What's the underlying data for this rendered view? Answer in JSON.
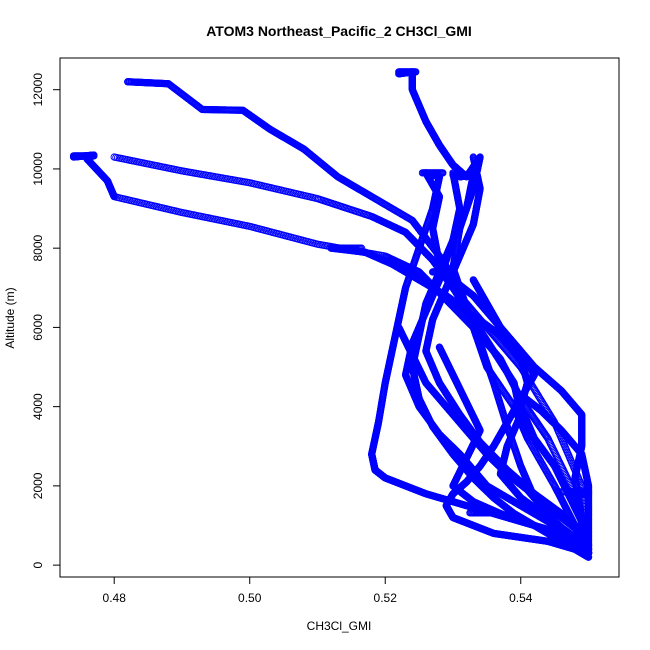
{
  "chart_data": {
    "type": "scatter",
    "title": "ATOM3 Northeast_Pacific_2 CH3Cl_GMI",
    "xlabel": "CH3Cl_GMI",
    "ylabel": "Altitude (m)",
    "xlim": [
      0.472,
      0.5545
    ],
    "ylim": [
      -300,
      12800
    ],
    "xticks": [
      0.48,
      0.5,
      0.52,
      0.54
    ],
    "xtick_labels": [
      "0.48",
      "0.50",
      "0.52",
      "0.54"
    ],
    "yticks": [
      0,
      2000,
      4000,
      6000,
      8000,
      10000,
      12000
    ],
    "ytick_labels": [
      "0",
      "2000",
      "4000",
      "6000",
      "8000",
      "10000",
      "12000"
    ],
    "grid": false,
    "marker": "open-circle",
    "color": "#0000ff",
    "series": [
      {
        "points_per_segment": 40,
        "x": [
          0.482,
          0.488,
          0.493,
          0.499,
          0.503,
          0.508,
          0.513,
          0.518,
          0.524,
          0.528,
          0.531,
          0.533,
          0.535,
          0.539,
          0.541,
          0.545,
          0.548,
          0.55
        ],
        "y": [
          12200,
          12150,
          11500,
          11480,
          11000,
          10500,
          9800,
          9300,
          8700,
          7800,
          7000,
          6000,
          5000,
          4000,
          3200,
          2000,
          1000,
          200
        ]
      },
      {
        "points_per_segment": 40,
        "x": [
          0.474,
          0.477,
          0.476,
          0.479,
          0.48,
          0.49,
          0.5,
          0.51,
          0.52,
          0.525,
          0.529,
          0.533,
          0.537,
          0.54,
          0.544,
          0.548,
          0.55
        ],
        "y": [
          10300,
          10350,
          10250,
          9700,
          9300,
          8900,
          8550,
          8100,
          7800,
          7400,
          6700,
          6000,
          5200,
          4200,
          3200,
          1800,
          300
        ]
      },
      {
        "points_per_segment": 40,
        "x": [
          0.48,
          0.49,
          0.5,
          0.51,
          0.518,
          0.523,
          0.527,
          0.53,
          0.535,
          0.54,
          0.545,
          0.549,
          0.55
        ],
        "y": [
          10300,
          9950,
          9650,
          9250,
          8800,
          8400,
          7700,
          7000,
          6000,
          5000,
          3600,
          2000,
          500
        ]
      },
      {
        "points_per_segment": 40,
        "x": [
          0.522,
          0.524,
          0.524,
          0.526,
          0.528,
          0.53,
          0.532,
          0.534,
          0.533,
          0.531,
          0.53,
          0.532,
          0.534,
          0.536,
          0.538,
          0.54,
          0.542,
          0.546,
          0.549,
          0.55
        ],
        "y": [
          12400,
          12450,
          12000,
          11200,
          10600,
          10100,
          9800,
          10300,
          9500,
          8500,
          7500,
          6500,
          5600,
          4600,
          3500,
          2500,
          1700,
          1200,
          800,
          300
        ]
      },
      {
        "points_per_segment": 40,
        "x": [
          0.526,
          0.528,
          0.527,
          0.525,
          0.523,
          0.522,
          0.521,
          0.52,
          0.519,
          0.518,
          0.5185,
          0.52,
          0.523,
          0.526,
          0.53,
          0.534,
          0.538,
          0.542,
          0.546,
          0.55
        ],
        "y": [
          9900,
          9800,
          9000,
          8000,
          7000,
          6200,
          5400,
          4600,
          3600,
          2800,
          2400,
          2200,
          2000,
          1800,
          1600,
          1400,
          1200,
          1000,
          800,
          500
        ]
      },
      {
        "points_per_segment": 40,
        "x": [
          0.531,
          0.533,
          0.532,
          0.53,
          0.528,
          0.526,
          0.524,
          0.523,
          0.525,
          0.528,
          0.531,
          0.533,
          0.535,
          0.539,
          0.543,
          0.547,
          0.55
        ],
        "y": [
          9800,
          9850,
          9000,
          8200,
          7200,
          6400,
          5600,
          4800,
          4000,
          3300,
          2800,
          2400,
          2000,
          1600,
          1200,
          800,
          400
        ]
      },
      {
        "points_per_segment": 40,
        "x": [
          0.526,
          0.528,
          0.527,
          0.528,
          0.53,
          0.533,
          0.536,
          0.539,
          0.54,
          0.538,
          0.537,
          0.54,
          0.544,
          0.548,
          0.55
        ],
        "y": [
          9900,
          9300,
          8500,
          7600,
          7000,
          6200,
          5400,
          4600,
          3800,
          3000,
          2300,
          1700,
          1200,
          700,
          300
        ]
      },
      {
        "points_per_segment": 40,
        "x": [
          0.53,
          0.531,
          0.53,
          0.528,
          0.526,
          0.525,
          0.524,
          0.525,
          0.527,
          0.53,
          0.533,
          0.536,
          0.539,
          0.542,
          0.545,
          0.548,
          0.55
        ],
        "y": [
          9900,
          9000,
          8200,
          7400,
          6600,
          5800,
          5000,
          4200,
          3500,
          2800,
          2200,
          1700,
          1300,
          1000,
          700,
          500,
          300
        ]
      },
      {
        "points_per_segment": 40,
        "x": [
          0.533,
          0.534,
          0.533,
          0.531,
          0.529,
          0.527,
          0.526,
          0.528,
          0.531,
          0.534,
          0.538,
          0.542,
          0.546,
          0.549,
          0.55
        ],
        "y": [
          10300,
          9500,
          8600,
          7800,
          7000,
          6200,
          5400,
          4600,
          3800,
          3100,
          2400,
          1800,
          1300,
          800,
          400
        ]
      },
      {
        "points_per_segment": 40,
        "x": [
          0.512,
          0.517,
          0.521,
          0.525,
          0.529,
          0.533,
          0.537,
          0.54,
          0.541,
          0.54,
          0.542,
          0.545,
          0.547,
          0.549,
          0.55
        ],
        "y": [
          8000,
          7900,
          7600,
          7200,
          6800,
          6300,
          5800,
          5200,
          4600,
          4000,
          3200,
          2500,
          1800,
          1100,
          400
        ]
      },
      {
        "points_per_segment": 40,
        "x": [
          0.528,
          0.53,
          0.533,
          0.536,
          0.539,
          0.542,
          0.546,
          0.549,
          0.549,
          0.548,
          0.549,
          0.55
        ],
        "y": [
          7400,
          7200,
          6800,
          6200,
          5600,
          5000,
          4400,
          3800,
          3000,
          2200,
          1200,
          300
        ]
      },
      {
        "points_per_segment": 40,
        "x": [
          0.533,
          0.535,
          0.537,
          0.54,
          0.542,
          0.54,
          0.538,
          0.536,
          0.534,
          0.532,
          0.53,
          0.529,
          0.53,
          0.533,
          0.536,
          0.54,
          0.544,
          0.548,
          0.55
        ],
        "y": [
          7200,
          6600,
          6000,
          5400,
          4800,
          4200,
          3600,
          3000,
          2500,
          2100,
          1800,
          1500,
          1200,
          1000,
          800,
          700,
          600,
          400,
          200
        ]
      },
      {
        "points_per_segment": 40,
        "x": [
          0.522,
          0.524,
          0.526,
          0.529,
          0.532,
          0.535,
          0.538,
          0.541,
          0.543,
          0.545,
          0.547,
          0.549,
          0.55
        ],
        "y": [
          6000,
          5300,
          4600,
          4000,
          3400,
          2800,
          2300,
          1900,
          1500,
          1100,
          800,
          500,
          300
        ]
      },
      {
        "points_per_segment": 40,
        "x": [
          0.54,
          0.543,
          0.546,
          0.549,
          0.55,
          0.55,
          0.55
        ],
        "y": [
          4300,
          3900,
          3400,
          2800,
          2000,
          1200,
          300
        ]
      },
      {
        "points_per_segment": 40,
        "x": [
          0.528,
          0.53,
          0.532,
          0.534,
          0.532,
          0.53,
          0.533,
          0.537,
          0.542,
          0.547,
          0.55
        ],
        "y": [
          5500,
          4800,
          4100,
          3400,
          2700,
          2000,
          1600,
          1300,
          1000,
          700,
          300
        ]
      }
    ],
    "flat_segments": [
      {
        "x": [
          0.546,
          0.55
        ],
        "y": [
          1850,
          1850
        ]
      },
      {
        "x": [
          0.547,
          0.55
        ],
        "y": [
          1800,
          1800
        ]
      },
      {
        "x": [
          0.5325,
          0.5355
        ],
        "y": [
          1320,
          1320
        ]
      },
      {
        "x": [
          0.5125,
          0.5165
        ],
        "y": [
          8000,
          8000
        ]
      },
      {
        "x": [
          0.474,
          0.477
        ],
        "y": [
          10330,
          10330
        ]
      },
      {
        "x": [
          0.482,
          0.488
        ],
        "y": [
          12200,
          12150
        ]
      },
      {
        "x": [
          0.522,
          0.5245
        ],
        "y": [
          12450,
          12450
        ]
      },
      {
        "x": [
          0.5255,
          0.5285
        ],
        "y": [
          9900,
          9900
        ]
      },
      {
        "x": [
          0.53,
          0.532
        ],
        "y": [
          9850,
          9850
        ]
      },
      {
        "x": [
          0.527,
          0.5295
        ],
        "y": [
          7400,
          7400
        ]
      }
    ]
  }
}
